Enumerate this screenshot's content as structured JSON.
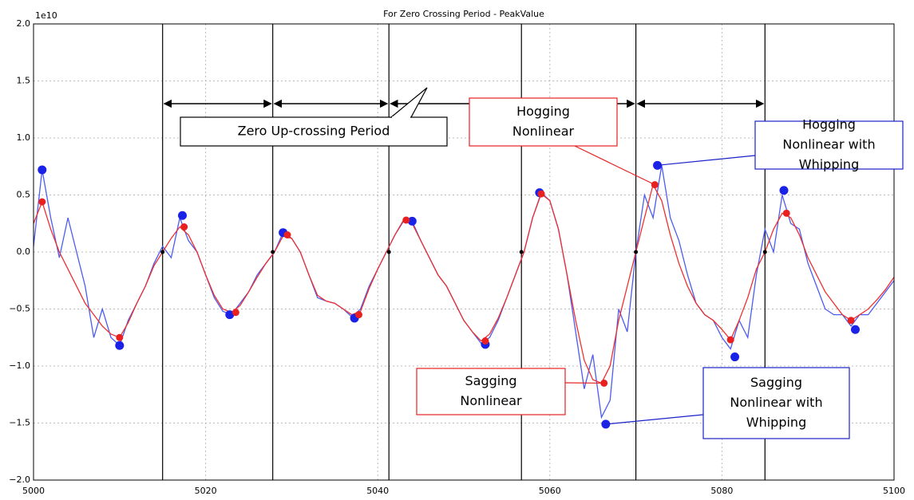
{
  "chart_data": {
    "type": "line",
    "title": "For Zero Crossing Period - PeakValue",
    "offset_label": "1e10",
    "xlim": [
      5000,
      5100
    ],
    "ylim": [
      -2.0,
      2.0
    ],
    "xticks": [
      5000,
      5020,
      5040,
      5060,
      5080,
      5100
    ],
    "yticks": [
      {
        "value": -2.0,
        "label": "−2.0"
      },
      {
        "value": -1.5,
        "label": "−1.5"
      },
      {
        "value": -1.0,
        "label": "−1.0"
      },
      {
        "value": -0.5,
        "label": "−0.5"
      },
      {
        "value": 0.0,
        "label": "0.0"
      },
      {
        "value": 0.5,
        "label": "0.5"
      },
      {
        "value": 1.0,
        "label": "1.0"
      },
      {
        "value": 1.5,
        "label": "1.5"
      },
      {
        "value": 2.0,
        "label": "2.0"
      }
    ],
    "grid": true,
    "x": [
      5000,
      5001,
      5002,
      5003,
      5004,
      5005,
      5006,
      5007,
      5008,
      5009,
      5010,
      5011,
      5012,
      5013,
      5014,
      5015,
      5016,
      5017,
      5018,
      5019,
      5020,
      5021,
      5022,
      5023,
      5024,
      5025,
      5026,
      5027,
      5028,
      5029,
      5030,
      5031,
      5032,
      5033,
      5034,
      5035,
      5036,
      5037,
      5038,
      5039,
      5040,
      5041,
      5042,
      5043,
      5044,
      5045,
      5046,
      5047,
      5048,
      5049,
      5050,
      5051,
      5052,
      5053,
      5054,
      5055,
      5056,
      5057,
      5058,
      5059,
      5060,
      5061,
      5062,
      5063,
      5064,
      5065,
      5066,
      5067,
      5068,
      5069,
      5070,
      5071,
      5072,
      5073,
      5074,
      5075,
      5076,
      5077,
      5078,
      5079,
      5080,
      5081,
      5082,
      5083,
      5084,
      5085,
      5086,
      5087,
      5088,
      5089,
      5090,
      5091,
      5092,
      5093,
      5094,
      5095,
      5096,
      5097,
      5098,
      5099,
      5100
    ],
    "series": [
      {
        "color": "#4c5cf0",
        "values": [
          0.05,
          0.72,
          0.3,
          -0.05,
          0.3,
          0.0,
          -0.3,
          -0.75,
          -0.5,
          -0.75,
          -0.82,
          -0.6,
          -0.45,
          -0.3,
          -0.1,
          0.05,
          -0.05,
          0.3,
          0.1,
          0.0,
          -0.2,
          -0.4,
          -0.52,
          -0.55,
          -0.45,
          -0.35,
          -0.2,
          -0.1,
          0.0,
          0.17,
          0.12,
          0.0,
          -0.2,
          -0.4,
          -0.43,
          -0.45,
          -0.5,
          -0.57,
          -0.5,
          -0.3,
          -0.15,
          0.0,
          0.15,
          0.27,
          0.27,
          0.1,
          -0.05,
          -0.2,
          -0.3,
          -0.45,
          -0.6,
          -0.7,
          -0.8,
          -0.75,
          -0.6,
          -0.4,
          -0.2,
          0.0,
          0.3,
          0.52,
          0.45,
          0.2,
          -0.2,
          -0.7,
          -1.2,
          -0.9,
          -1.45,
          -1.3,
          -0.5,
          -0.7,
          0.0,
          0.5,
          0.3,
          0.76,
          0.3,
          0.1,
          -0.2,
          -0.45,
          -0.55,
          -0.6,
          -0.75,
          -0.85,
          -0.6,
          -0.75,
          -0.2,
          0.2,
          0.0,
          0.5,
          0.25,
          0.2,
          -0.1,
          -0.3,
          -0.5,
          -0.55,
          -0.55,
          -0.65,
          -0.55,
          -0.55,
          -0.45,
          -0.35,
          -0.25
        ]
      },
      {
        "color": "#ee3030",
        "values": [
          0.25,
          0.44,
          0.2,
          0.0,
          -0.15,
          -0.3,
          -0.45,
          -0.55,
          -0.65,
          -0.72,
          -0.75,
          -0.62,
          -0.45,
          -0.3,
          -0.12,
          0.0,
          0.12,
          0.22,
          0.15,
          0.0,
          -0.2,
          -0.38,
          -0.5,
          -0.53,
          -0.47,
          -0.35,
          -0.22,
          -0.1,
          0.0,
          0.14,
          0.12,
          0.0,
          -0.2,
          -0.38,
          -0.43,
          -0.45,
          -0.5,
          -0.55,
          -0.52,
          -0.32,
          -0.15,
          0.0,
          0.15,
          0.28,
          0.25,
          0.1,
          -0.05,
          -0.2,
          -0.3,
          -0.45,
          -0.6,
          -0.7,
          -0.78,
          -0.72,
          -0.58,
          -0.4,
          -0.2,
          0.0,
          0.3,
          0.51,
          0.45,
          0.2,
          -0.2,
          -0.6,
          -0.95,
          -1.12,
          -1.15,
          -1.0,
          -0.6,
          -0.3,
          0.0,
          0.3,
          0.59,
          0.45,
          0.15,
          -0.1,
          -0.3,
          -0.45,
          -0.55,
          -0.6,
          -0.68,
          -0.77,
          -0.6,
          -0.4,
          -0.15,
          0.0,
          0.2,
          0.34,
          0.3,
          0.15,
          -0.05,
          -0.2,
          -0.35,
          -0.45,
          -0.55,
          -0.6,
          -0.55,
          -0.5,
          -0.42,
          -0.33,
          -0.22
        ]
      },
      {
        "type": "scatter",
        "color": "#1a22e8",
        "x": [
          5001,
          5010,
          5017.3,
          5022.8,
          5029,
          5037.3,
          5044,
          5052.5,
          5058.8,
          5066.5,
          5072.5,
          5081.5,
          5087.2,
          5095.5
        ],
        "values": [
          0.72,
          -0.82,
          0.32,
          -0.55,
          0.17,
          -0.58,
          0.27,
          -0.81,
          0.52,
          -1.51,
          0.76,
          -0.92,
          0.54,
          -0.68
        ]
      },
      {
        "type": "scatter",
        "color": "#e82020",
        "x": [
          5001,
          5010,
          5017.5,
          5023.5,
          5029.5,
          5037.8,
          5043.3,
          5052.5,
          5059,
          5066.3,
          5072.2,
          5081,
          5087.5,
          5095
        ],
        "values": [
          0.44,
          -0.75,
          0.22,
          -0.53,
          0.15,
          -0.55,
          0.28,
          -0.78,
          0.51,
          -1.15,
          0.59,
          -0.77,
          0.34,
          -0.6
        ]
      }
    ],
    "crossings": {
      "x": [
        5015,
        5027.8,
        5041.3,
        5056.7,
        5070,
        5085
      ],
      "values": [
        0,
        0,
        0,
        0,
        0,
        0
      ]
    },
    "annotations": [
      {
        "lines": [
          "Zero Up-crossing Period"
        ],
        "color": "#000000"
      },
      {
        "lines": [
          "Hogging",
          "Nonlinear"
        ],
        "color": "#e82020"
      },
      {
        "lines": [
          "Hogging",
          "Nonlinear with",
          "Whipping"
        ],
        "color": "#1a22c8"
      },
      {
        "lines": [
          "Sagging",
          "Nonlinear"
        ],
        "color": "#e82020"
      },
      {
        "lines": [
          "Sagging",
          "Nonlinear with",
          "Whipping"
        ],
        "color": "#1a22c8"
      }
    ]
  }
}
